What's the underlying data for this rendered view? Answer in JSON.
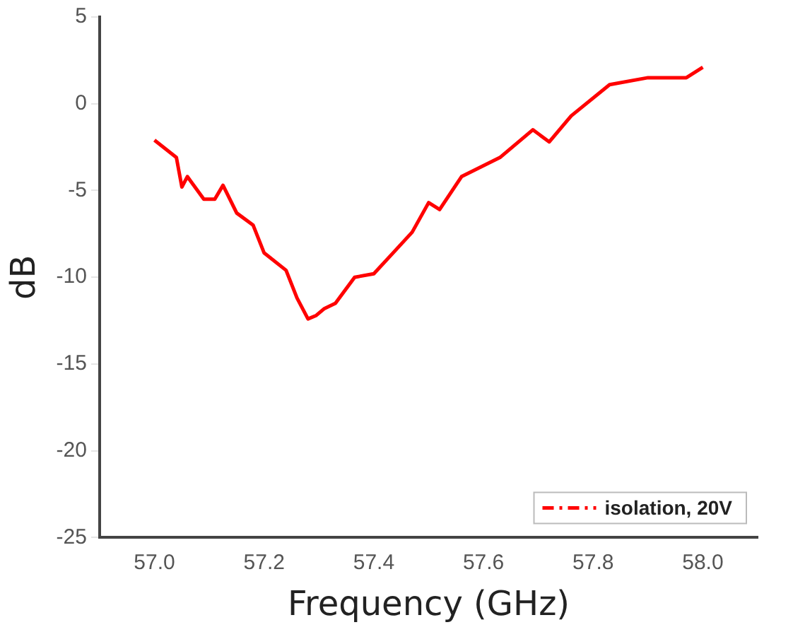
{
  "chart_data": {
    "type": "line",
    "xlabel": "Frequency (GHz)",
    "ylabel": "dB",
    "xlim": [
      56.9,
      58.1
    ],
    "xticks": [
      {
        "value": 57,
        "label": "57.0"
      },
      57.2,
      57.4,
      57.6,
      57.8,
      {
        "value": 58,
        "label": "58.0"
      }
    ],
    "ylim": [
      -25,
      5
    ],
    "yticks": [
      -25,
      -20,
      -15,
      -10,
      -5,
      0,
      5
    ],
    "legend": "bottom right",
    "grid": false,
    "series": [
      {
        "name": "isolation, 20V",
        "color": "#ff0000",
        "x": [
          57.0,
          57.04,
          57.05,
          57.06,
          57.09,
          57.11,
          57.125,
          57.15,
          57.18,
          57.2,
          57.24,
          57.26,
          57.28,
          57.295,
          57.31,
          57.33,
          57.365,
          57.4,
          57.435,
          57.47,
          57.5,
          57.52,
          57.56,
          57.63,
          57.69,
          57.72,
          57.76,
          57.83,
          57.9,
          57.97,
          58.0
        ],
        "values": [
          -2.1,
          -3.1,
          -4.8,
          -4.2,
          -5.5,
          -5.5,
          -4.7,
          -6.3,
          -7.0,
          -8.6,
          -9.6,
          -11.2,
          -12.4,
          -12.2,
          -11.8,
          -11.5,
          -10.0,
          -9.8,
          -8.6,
          -7.4,
          -5.7,
          -6.1,
          -4.2,
          -3.1,
          -1.5,
          -2.2,
          -0.7,
          1.1,
          1.5,
          1.5,
          2.1
        ]
      }
    ]
  }
}
